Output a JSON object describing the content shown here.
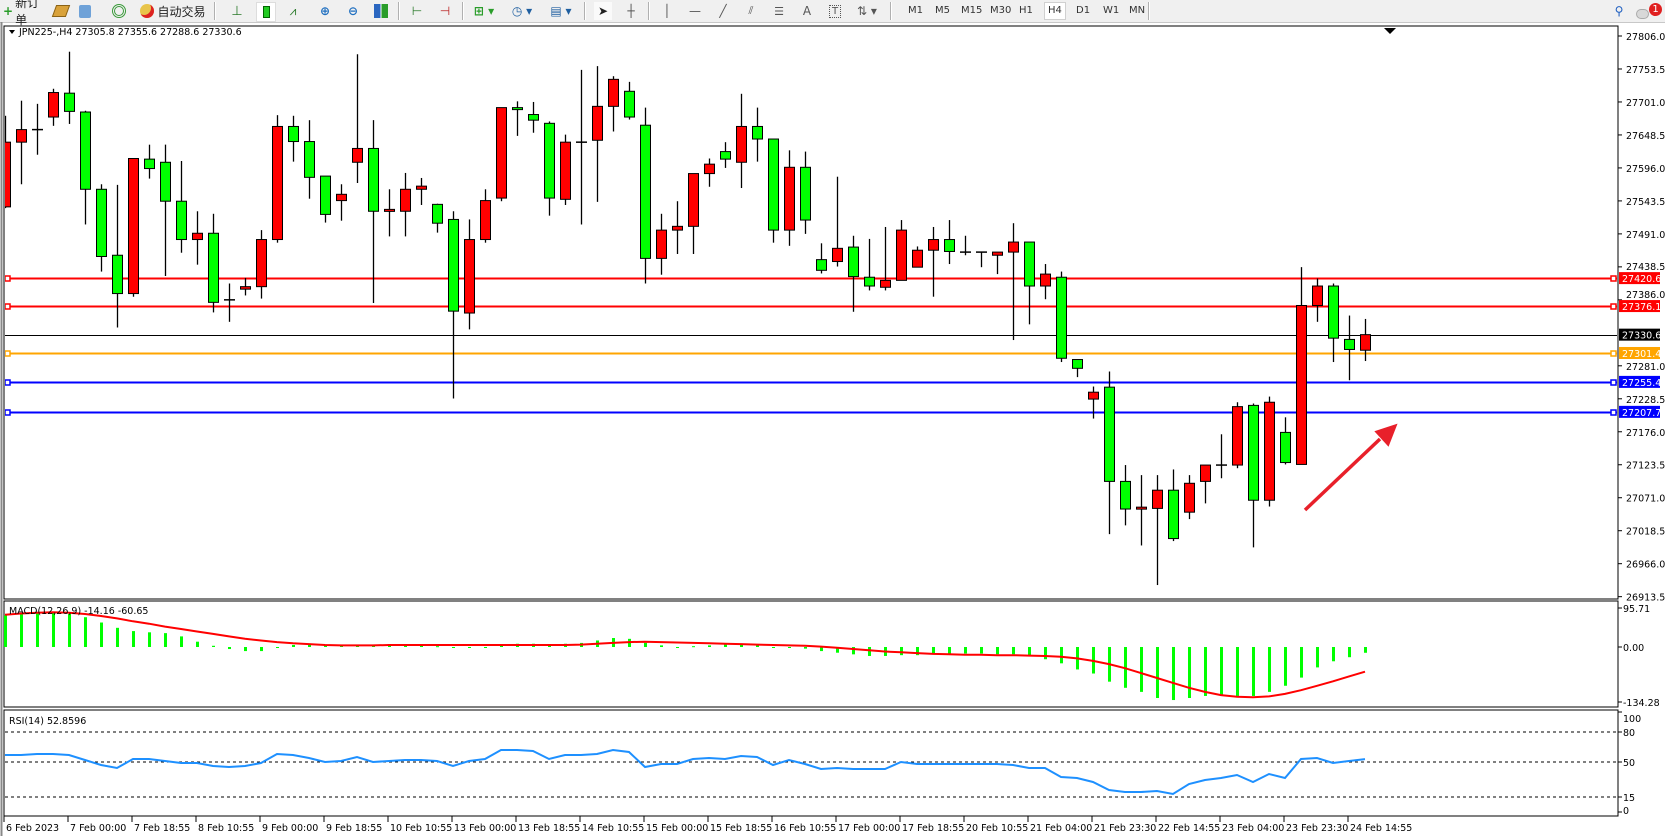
{
  "toolbar": {
    "new_order_label": "新订单",
    "auto_trading_label": "自动交易",
    "timeframes": [
      "M1",
      "M5",
      "M15",
      "M30",
      "H1",
      "H4",
      "D1",
      "W1",
      "MN"
    ],
    "active_timeframe": "H4",
    "notification_count": "1",
    "icons": [
      "new-order-icon",
      "market-watch-icon",
      "navigator-icon",
      "signals-icon",
      "auto-trading-icon",
      "bar-chart-icon",
      "candlestick-icon",
      "line-chart-icon",
      "zoom-in-icon",
      "zoom-out-icon",
      "tile-windows-icon",
      "chart-shift-icon",
      "autoscroll-icon",
      "new-chart-icon",
      "periods-icon",
      "templates-icon",
      "cursor-icon",
      "crosshair-icon",
      "vertical-line-icon",
      "horizontal-line-icon",
      "trendline-icon",
      "equidistant-channel-icon",
      "fibonacci-icon",
      "text-icon",
      "text-label-icon",
      "arrows-icon",
      "search-icon",
      "chat-icon"
    ]
  },
  "chart": {
    "header": "JPN225-,H4  27305.8 27355.6 27288.6 27330.6",
    "macd_label": "MACD(12,26,9) -14.16 -60.65",
    "rsi_label": "RSI(14) 52.8596",
    "colors": {
      "bull": "#ff0000",
      "bear": "#00ff00",
      "macd_hist": "#00ff00",
      "signal": "#ff0000",
      "rsi": "#1e90ff"
    }
  },
  "chart_data": [
    {
      "type": "candlestick",
      "title": "JPN225-,H4",
      "ylim": [
        26913.5,
        27806.0
      ],
      "y_ticks": [
        "27806.0",
        "27753.5",
        "27701.0",
        "27648.5",
        "27596.0",
        "27543.5",
        "27491.0",
        "27438.5",
        "27386.0",
        "27281.0",
        "27228.5",
        "27176.0",
        "27123.5",
        "27071.0",
        "27018.5",
        "26966.0",
        "26913.5"
      ],
      "x_tick_labels": [
        "6 Feb 2023",
        "7 Feb 00:00",
        "7 Feb 18:55",
        "8 Feb 10:55",
        "9 Feb 00:00",
        "9 Feb 18:55",
        "10 Feb 10:55",
        "13 Feb 00:00",
        "13 Feb 18:55",
        "14 Feb 10:55",
        "15 Feb 00:00",
        "15 Feb 18:55",
        "16 Feb 10:55",
        "17 Feb 00:00",
        "17 Feb 18:55",
        "20 Feb 10:55",
        "21 Feb 04:00",
        "21 Feb 23:30",
        "22 Feb 14:55",
        "23 Feb 04:00",
        "23 Feb 23:30",
        "24 Feb 14:55"
      ],
      "ohlc": [
        [
          27534,
          27679,
          27532,
          27637
        ],
        [
          27637,
          27703,
          27570,
          27657
        ],
        [
          27657,
          27698,
          27617,
          27657
        ],
        [
          27677,
          27722,
          27663,
          27716
        ],
        [
          27715,
          27781,
          27666,
          27686
        ],
        [
          27685,
          27687,
          27506,
          27562
        ],
        [
          27562,
          27570,
          27431,
          27455
        ],
        [
          27457,
          27569,
          27342,
          27396
        ],
        [
          27396,
          27611,
          27391,
          27611
        ],
        [
          27610,
          27633,
          27579,
          27595
        ],
        [
          27605,
          27633,
          27424,
          27543
        ],
        [
          27543,
          27607,
          27461,
          27482
        ],
        [
          27482,
          27527,
          27442,
          27492
        ],
        [
          27492,
          27523,
          27366,
          27382
        ],
        [
          27386,
          27412,
          27351,
          27386
        ],
        [
          27403,
          27421,
          27393,
          27407
        ],
        [
          27407,
          27497,
          27388,
          27482
        ],
        [
          27482,
          27680,
          27477,
          27662
        ],
        [
          27662,
          27679,
          27606,
          27638
        ],
        [
          27638,
          27672,
          27547,
          27581
        ],
        [
          27583,
          27583,
          27509,
          27522
        ],
        [
          27544,
          27570,
          27512,
          27554
        ],
        [
          27605,
          27777,
          27572,
          27627
        ],
        [
          27627,
          27672,
          27381,
          27527
        ],
        [
          27527,
          27562,
          27487,
          27530
        ],
        [
          27527,
          27588,
          27487,
          27562
        ],
        [
          27562,
          27580,
          27537,
          27567
        ],
        [
          27538,
          27539,
          27493,
          27508
        ],
        [
          27514,
          27527,
          27229,
          27368
        ],
        [
          27365,
          27514,
          27339,
          27482
        ],
        [
          27482,
          27562,
          27477,
          27544
        ],
        [
          27548,
          27692,
          27543,
          27692
        ],
        [
          27692,
          27702,
          27647,
          27689
        ],
        [
          27681,
          27701,
          27652,
          27672
        ],
        [
          27667,
          27670,
          27520,
          27548
        ],
        [
          27546,
          27649,
          27537,
          27637
        ],
        [
          27637,
          27752,
          27506,
          27637
        ],
        [
          27640,
          27758,
          27542,
          27694
        ],
        [
          27694,
          27742,
          27654,
          27737
        ],
        [
          27718,
          27733,
          27673,
          27677
        ],
        [
          27664,
          27692,
          27412,
          27452
        ],
        [
          27452,
          27523,
          27426,
          27497
        ],
        [
          27497,
          27543,
          27459,
          27503
        ],
        [
          27503,
          27587,
          27459,
          27587
        ],
        [
          27587,
          27611,
          27566,
          27602
        ],
        [
          27622,
          27637,
          27596,
          27610
        ],
        [
          27605,
          27714,
          27564,
          27662
        ],
        [
          27662,
          27692,
          27606,
          27642
        ],
        [
          27642,
          27642,
          27477,
          27497
        ],
        [
          27497,
          27624,
          27472,
          27597
        ],
        [
          27597,
          27622,
          27491,
          27513
        ],
        [
          27450,
          27476,
          27428,
          27433
        ],
        [
          27447,
          27582,
          27439,
          27468
        ],
        [
          27470,
          27488,
          27367,
          27423
        ],
        [
          27422,
          27483,
          27401,
          27408
        ],
        [
          27406,
          27502,
          27401,
          27417
        ],
        [
          27417,
          27513,
          27417,
          27497
        ],
        [
          27438,
          27471,
          27438,
          27465
        ],
        [
          27465,
          27502,
          27391,
          27482
        ],
        [
          27482,
          27513,
          27443,
          27463
        ],
        [
          27462,
          27488,
          27457,
          27462
        ],
        [
          27462,
          27462,
          27438,
          27462
        ],
        [
          27457,
          27462,
          27427,
          27462
        ],
        [
          27462,
          27508,
          27322,
          27478
        ],
        [
          27478,
          27478,
          27347,
          27408
        ],
        [
          27408,
          27443,
          27387,
          27427
        ],
        [
          27422,
          27431,
          27287,
          27293
        ],
        [
          27291,
          27291,
          27263,
          27277
        ],
        [
          27228,
          27248,
          27197,
          27239
        ],
        [
          27247,
          27272,
          27013,
          27097
        ],
        [
          27097,
          27123,
          27027,
          27053
        ],
        [
          27053,
          27107,
          26995,
          27056
        ],
        [
          27054,
          27107,
          26932,
          27083
        ],
        [
          27083,
          27116,
          27002,
          27006
        ],
        [
          27048,
          27107,
          27037,
          27094
        ],
        [
          27097,
          27123,
          27062,
          27123
        ],
        [
          27123,
          27172,
          27102,
          27123
        ],
        [
          27123,
          27223,
          27118,
          27216
        ],
        [
          27218,
          27221,
          26992,
          27067
        ],
        [
          27067,
          27232,
          27057,
          27223
        ],
        [
          27175,
          27199,
          27124,
          27127
        ],
        [
          27124,
          27438,
          27124,
          27377
        ],
        [
          27377,
          27420,
          27351,
          27408
        ],
        [
          27408,
          27412,
          27287,
          27325
        ],
        [
          27323,
          27361,
          27258,
          27307
        ],
        [
          27305.8,
          27355.6,
          27288.6,
          27330.6
        ]
      ],
      "horizontal_lines": [
        {
          "price": "27420.6",
          "color": "#ff0000"
        },
        {
          "price": "27376.1",
          "color": "#ff0000"
        },
        {
          "price": "27330.6",
          "color": "#000000",
          "current": true
        },
        {
          "price": "27301.4",
          "color": "#ffa500"
        },
        {
          "price": "27255.4",
          "color": "#0000ff"
        },
        {
          "price": "27207.7",
          "color": "#0000ff"
        }
      ],
      "annotation": {
        "type": "arrow",
        "color": "#e8202a",
        "direction": "up-right"
      }
    },
    {
      "type": "bar+line",
      "title": "MACD(12,26,9)",
      "ylim": [
        -134.28,
        95.71
      ],
      "y_ticks": [
        "95.71",
        "0.00",
        "-134.28"
      ],
      "histogram": [
        78,
        83,
        86,
        86,
        81,
        73,
        60,
        47,
        39,
        36,
        34,
        26,
        13,
        3,
        -5,
        -10,
        -10,
        0,
        5,
        6,
        6,
        5,
        5,
        6,
        6,
        5,
        4,
        2,
        -2,
        -2,
        0,
        4,
        8,
        8,
        6,
        8,
        10,
        16,
        22,
        20,
        10,
        4,
        0,
        2,
        4,
        6,
        6,
        4,
        0,
        -2,
        -4,
        -10,
        -14,
        -18,
        -22,
        -22,
        -20,
        -20,
        -18,
        -16,
        -16,
        -16,
        -18,
        -18,
        -22,
        -30,
        -40,
        -55,
        -65,
        -85,
        -100,
        -110,
        -125,
        -130,
        -125,
        -120,
        -120,
        -120,
        -120,
        -110,
        -95,
        -75,
        -50,
        -35,
        -25,
        -14.16
      ],
      "signal": [
        79,
        82,
        84,
        85,
        84,
        81,
        76,
        70,
        63,
        57,
        50,
        44,
        38,
        32,
        26,
        20,
        16,
        12,
        9,
        7,
        5,
        4,
        4,
        4,
        5,
        5,
        5,
        5,
        5,
        5,
        5,
        5,
        5,
        5,
        5,
        5,
        6,
        8,
        10,
        12,
        13,
        12,
        11,
        10,
        9,
        8,
        7,
        6,
        5,
        4,
        3,
        1,
        -2,
        -5,
        -8,
        -11,
        -13,
        -15,
        -17,
        -18,
        -19,
        -19,
        -20,
        -20,
        -21,
        -22,
        -24,
        -28,
        -34,
        -42,
        -52,
        -64,
        -76,
        -88,
        -100,
        -110,
        -118,
        -122,
        -123,
        -121,
        -115,
        -106,
        -95,
        -84,
        -72,
        -60.65
      ]
    },
    {
      "type": "line",
      "title": "RSI(14)",
      "ylim": [
        0,
        100
      ],
      "y_ticks": [
        "100",
        "80",
        "50",
        "15",
        "0"
      ],
      "levels": [
        80,
        50,
        15
      ],
      "values": [
        57,
        57,
        58,
        58,
        57,
        52,
        47,
        44,
        53,
        53,
        51,
        49,
        49,
        46,
        45,
        46,
        49,
        58,
        57,
        54,
        50,
        51,
        55,
        50,
        51,
        52,
        52,
        51,
        46,
        51,
        53,
        62,
        62,
        61,
        53,
        57,
        57,
        58,
        62,
        60,
        45,
        48,
        48,
        53,
        54,
        53,
        56,
        55,
        47,
        52,
        48,
        43,
        44,
        43,
        43,
        43,
        50,
        48,
        48,
        48,
        48,
        48,
        48,
        47,
        44,
        44,
        35,
        34,
        30,
        22,
        20,
        20,
        21,
        18,
        28,
        32,
        34,
        37,
        30,
        38,
        34,
        53,
        54,
        49,
        51,
        52.86
      ]
    }
  ]
}
